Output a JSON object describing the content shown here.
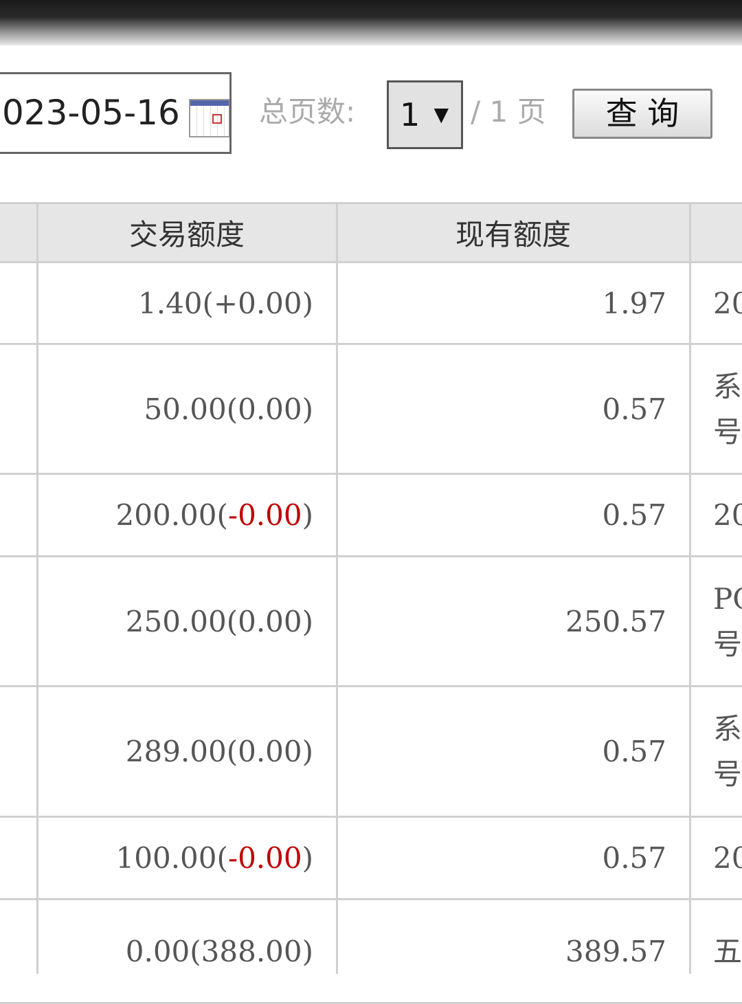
{
  "toolbar": {
    "date": "023-05-16",
    "total_pages_label": "总页数:",
    "page_select": "1",
    "page_total": "/ 1 页",
    "query_button": "查 询"
  },
  "table": {
    "headers": [
      "交易额度",
      "现有额度"
    ],
    "rows": [
      {
        "trade": {
          "before": "1.40(+0.00)"
        },
        "balance": "1.97",
        "extra": [
          "20"
        ]
      },
      {
        "trade": {
          "before": "50.00(0.00)"
        },
        "balance": "0.57",
        "extra": [
          "系",
          "号"
        ]
      },
      {
        "trade": {
          "before": "200.00(",
          "negative": "-0.00",
          "after": ")"
        },
        "balance": "0.57",
        "extra": [
          "20"
        ]
      },
      {
        "trade": {
          "before": "250.00(0.00)"
        },
        "balance": "250.57",
        "extra": [
          "PC",
          "号"
        ]
      },
      {
        "trade": {
          "before": "289.00(0.00)"
        },
        "balance": "0.57",
        "extra": [
          "系",
          "号"
        ]
      },
      {
        "trade": {
          "before": "100.00(",
          "negative": "-0.00",
          "after": ")"
        },
        "balance": "0.57",
        "extra": [
          "20"
        ]
      },
      {
        "trade": {
          "before": "0.00(388.00)"
        },
        "balance": "389.57",
        "extra": [
          "五"
        ]
      }
    ]
  }
}
